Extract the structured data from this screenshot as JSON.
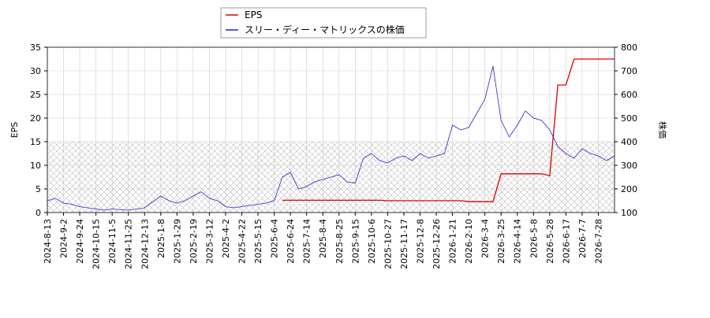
{
  "chart_data": {
    "type": "line",
    "categories": [
      "2024-8-13",
      null,
      "2024-9-2",
      null,
      "2024-9-24",
      null,
      "2024-10-15",
      null,
      "2024-11-5",
      null,
      "2024-11-25",
      null,
      "2024-12-13",
      null,
      "2025-1-8",
      null,
      "2025-1-29",
      null,
      "2025-2-19",
      null,
      "2025-3-12",
      null,
      "2025-4-2",
      null,
      "2025-4-22",
      null,
      "2025-5-15",
      null,
      "2025-6-4",
      null,
      "2025-6-24",
      null,
      "2025-7-14",
      null,
      "2025-8-4",
      null,
      "2025-8-25",
      null,
      "2025-9-15",
      null,
      "2025-10-6",
      null,
      "2025-10-27",
      null,
      "2025-11-17",
      null,
      "2025-12-8",
      null,
      "2025-12-26",
      null,
      "2026-1-21",
      null,
      "2026-2-10",
      null,
      "2026-3-4",
      null,
      "2026-3-25",
      null,
      "2026-4-14",
      null,
      "2026-5-8",
      null,
      "2026-5-28",
      null,
      "2026-6-17",
      null,
      "2026-7-7",
      null,
      "2026-7-28",
      null,
      null
    ],
    "series": [
      {
        "name": "EPS",
        "color": "#dd0000",
        "axis": "y",
        "values": [
          null,
          null,
          null,
          null,
          null,
          null,
          null,
          null,
          null,
          null,
          null,
          null,
          null,
          null,
          null,
          null,
          null,
          null,
          null,
          null,
          null,
          null,
          null,
          null,
          null,
          null,
          null,
          null,
          null,
          2.6,
          2.6,
          2.6,
          2.6,
          2.6,
          2.6,
          2.6,
          2.6,
          2.6,
          2.6,
          2.6,
          2.6,
          2.6,
          2.5,
          2.5,
          2.5,
          2.5,
          2.5,
          2.5,
          2.5,
          2.5,
          2.5,
          2.5,
          2.3,
          2.3,
          2.3,
          2.3,
          8.2,
          8.2,
          8.2,
          8.2,
          8.2,
          8.2,
          7.8,
          27.0,
          27.0,
          32.5,
          32.5,
          32.5,
          32.5,
          32.5,
          32.5
        ]
      },
      {
        "name": "スリー・ディー・マトリックスの株価",
        "color": "#2222cc",
        "axis": "y2",
        "values": [
          150,
          160,
          140,
          135,
          125,
          120,
          115,
          110,
          115,
          112,
          110,
          115,
          120,
          145,
          170,
          150,
          140,
          150,
          170,
          188,
          160,
          150,
          125,
          120,
          125,
          130,
          135,
          140,
          150,
          250,
          270,
          200,
          210,
          230,
          240,
          250,
          260,
          230,
          225,
          330,
          350,
          320,
          310,
          330,
          340,
          320,
          350,
          330,
          340,
          350,
          470,
          450,
          460,
          520,
          580,
          720,
          490,
          420,
          470,
          530,
          500,
          490,
          450,
          380,
          350,
          330,
          370,
          350,
          340,
          320,
          340
        ]
      }
    ],
    "ylabel": "EPS",
    "y2label": "株価",
    "ylim": [
      0,
      35
    ],
    "yticks": [
      0,
      5,
      10,
      15,
      20,
      25,
      30,
      35
    ],
    "y2lim": [
      100,
      800
    ],
    "y2ticks": [
      100,
      200,
      300,
      400,
      500,
      600,
      700,
      800
    ],
    "grid": true,
    "legend": "top"
  }
}
